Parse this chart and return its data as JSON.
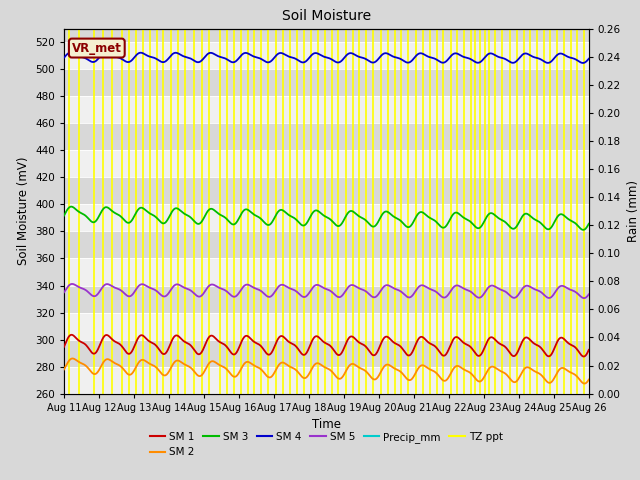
{
  "title": "Soil Moisture",
  "xlabel": "Time",
  "ylabel_left": "Soil Moisture (mV)",
  "ylabel_right": "Rain (mm)",
  "ylim_left": [
    260,
    530
  ],
  "ylim_right": [
    0.0,
    0.26
  ],
  "yticks_left": [
    260,
    280,
    300,
    320,
    340,
    360,
    380,
    400,
    420,
    440,
    460,
    480,
    500,
    520
  ],
  "yticks_right": [
    0.0,
    0.02,
    0.04,
    0.06,
    0.08,
    0.1,
    0.12,
    0.14,
    0.16,
    0.18,
    0.2,
    0.22,
    0.24,
    0.26
  ],
  "annotation_text": "VR_met",
  "annotation_color": "#8B0000",
  "bg_color": "#d8d8d8",
  "plot_bg_color": "#e8e8e8",
  "band_color_light": "#f0f0f0",
  "band_color_dark": "#d8d8d8",
  "sm1_color": "#cc0000",
  "sm2_color": "#ff8c00",
  "sm3_color": "#00bb00",
  "sm4_color": "#0000cc",
  "sm5_color": "#9933cc",
  "precip_color": "#00cccc",
  "tz_ppt_color": "#ffff00",
  "sm1_base": 297,
  "sm2_base": 281,
  "sm3_base": 393,
  "sm4_base": 509,
  "sm5_base": 337,
  "n_points": 1440,
  "rain_events": [
    0.15,
    0.42,
    0.85,
    1.12,
    1.38,
    1.65,
    1.85,
    2.05,
    2.25,
    2.45,
    2.65,
    2.82,
    3.05,
    3.25,
    3.45,
    3.72,
    3.95,
    4.15,
    4.45,
    4.65,
    4.85,
    5.05,
    5.25,
    5.42,
    5.62,
    5.82,
    6.05,
    6.25,
    6.45,
    6.65,
    6.85,
    7.05,
    7.25,
    7.45,
    7.65,
    7.82,
    8.05,
    8.25,
    8.42,
    8.62,
    8.82,
    9.05,
    9.25,
    9.45,
    9.62,
    9.82,
    10.05,
    10.25,
    10.45,
    10.65,
    10.82,
    11.05,
    11.22,
    11.42,
    11.62,
    11.75,
    11.88,
    12.02,
    12.15,
    12.32,
    12.52,
    12.75,
    12.95,
    13.15,
    13.32,
    13.52,
    13.72,
    13.88,
    14.08,
    14.28,
    14.48,
    14.65,
    14.85
  ]
}
